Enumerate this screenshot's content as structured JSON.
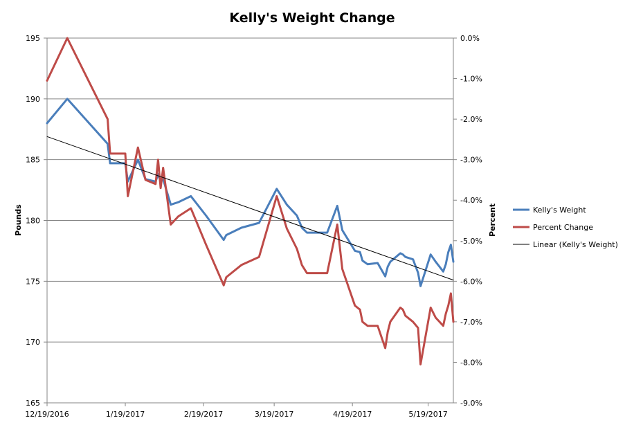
{
  "chart_data": {
    "type": "line",
    "title": "Kelly's Weight Change",
    "ylabel": "Pounds",
    "y2label": "Percent",
    "ylim": [
      165,
      195
    ],
    "y_ticks": [
      "165",
      "170",
      "175",
      "180",
      "185",
      "190",
      "195"
    ],
    "y2lim": [
      -0.09,
      0.0
    ],
    "y2_ticks": [
      "0.0%",
      "-1.0%",
      "-2.0%",
      "-3.0%",
      "-4.0%",
      "-5.0%",
      "-6.0%",
      "-7.0%",
      "-8.0%",
      "-9.0%"
    ],
    "x_range": [
      "2016-12-19",
      "2017-05-29"
    ],
    "x_ticks": [
      "12/19/2016",
      "1/19/2017",
      "2/19/2017",
      "3/19/2017",
      "4/19/2017",
      "5/19/2017"
    ],
    "grid": "horizontal",
    "legend_position": "right",
    "series": [
      {
        "name": "Kelly's Weight",
        "color": "#4a7ebb",
        "axis": "left",
        "x": [
          "2016-12-19",
          "2016-12-27",
          "2017-01-12",
          "2017-01-13",
          "2017-01-19",
          "2017-01-20",
          "2017-01-24",
          "2017-01-27",
          "2017-01-31",
          "2017-02-01",
          "2017-02-02",
          "2017-02-03",
          "2017-02-06",
          "2017-02-09",
          "2017-02-14",
          "2017-02-20",
          "2017-02-27",
          "2017-02-28",
          "2017-03-06",
          "2017-03-13",
          "2017-03-20",
          "2017-03-24",
          "2017-03-28",
          "2017-03-30",
          "2017-04-01",
          "2017-04-09",
          "2017-04-13",
          "2017-04-15",
          "2017-04-20",
          "2017-04-22",
          "2017-04-23",
          "2017-04-25",
          "2017-04-29",
          "2017-05-02",
          "2017-05-03",
          "2017-05-04",
          "2017-05-08",
          "2017-05-09",
          "2017-05-10",
          "2017-05-13",
          "2017-05-15",
          "2017-05-16",
          "2017-05-20",
          "2017-05-22",
          "2017-05-25",
          "2017-05-26",
          "2017-05-27",
          "2017-05-28",
          "2017-05-29"
        ],
        "values": [
          188.0,
          190.0,
          186.3,
          184.7,
          184.7,
          183.2,
          185.0,
          183.4,
          183.2,
          183.8,
          183.2,
          183.4,
          181.3,
          181.5,
          182.0,
          180.4,
          178.4,
          178.8,
          179.4,
          179.8,
          182.6,
          181.3,
          180.4,
          179.4,
          179.0,
          179.0,
          181.2,
          179.2,
          177.5,
          177.4,
          176.7,
          176.4,
          176.5,
          175.4,
          176.2,
          176.6,
          177.3,
          177.2,
          177.0,
          176.8,
          175.7,
          174.6,
          177.2,
          176.6,
          175.8,
          176.4,
          177.4,
          178.0,
          176.6
        ]
      },
      {
        "name": "Percent Change",
        "color": "#be4b48",
        "axis": "right",
        "x": [
          "2016-12-19",
          "2016-12-27",
          "2017-01-12",
          "2017-01-13",
          "2017-01-19",
          "2017-01-20",
          "2017-01-24",
          "2017-01-27",
          "2017-01-31",
          "2017-02-01",
          "2017-02-02",
          "2017-02-03",
          "2017-02-06",
          "2017-02-09",
          "2017-02-14",
          "2017-02-20",
          "2017-02-27",
          "2017-02-28",
          "2017-03-06",
          "2017-03-13",
          "2017-03-20",
          "2017-03-24",
          "2017-03-28",
          "2017-03-30",
          "2017-04-01",
          "2017-04-09",
          "2017-04-13",
          "2017-04-15",
          "2017-04-20",
          "2017-04-22",
          "2017-04-23",
          "2017-04-25",
          "2017-04-29",
          "2017-05-02",
          "2017-05-03",
          "2017-05-04",
          "2017-05-08",
          "2017-05-09",
          "2017-05-10",
          "2017-05-13",
          "2017-05-15",
          "2017-05-16",
          "2017-05-20",
          "2017-05-22",
          "2017-05-25",
          "2017-05-26",
          "2017-05-27",
          "2017-05-28",
          "2017-05-29"
        ],
        "values": [
          -0.0105,
          0.0,
          -0.02,
          -0.0285,
          -0.0285,
          -0.039,
          -0.027,
          -0.035,
          -0.036,
          -0.03,
          -0.037,
          -0.032,
          -0.046,
          -0.044,
          -0.042,
          -0.051,
          -0.061,
          -0.059,
          -0.056,
          -0.054,
          -0.039,
          -0.047,
          -0.052,
          -0.056,
          -0.058,
          -0.058,
          -0.046,
          -0.057,
          -0.066,
          -0.067,
          -0.07,
          -0.071,
          -0.071,
          -0.0765,
          -0.0725,
          -0.07,
          -0.0665,
          -0.067,
          -0.0685,
          -0.07,
          -0.0715,
          -0.0805,
          -0.0665,
          -0.069,
          -0.071,
          -0.068,
          -0.066,
          -0.063,
          -0.07
        ]
      },
      {
        "name": "Linear (Kelly's Weight)",
        "color": "#000000",
        "axis": "left",
        "type": "trendline",
        "x": [
          "2016-12-19",
          "2017-05-29"
        ],
        "values": [
          186.9,
          175.1
        ]
      }
    ]
  }
}
